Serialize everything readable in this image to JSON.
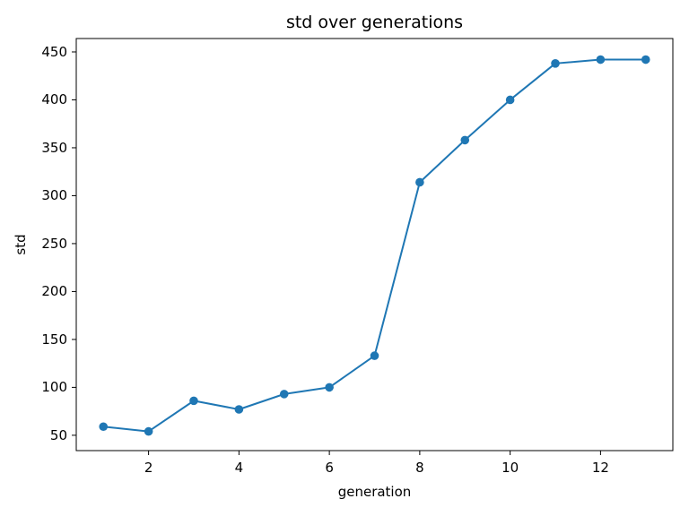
{
  "chart_data": {
    "type": "line",
    "title": "std over generations",
    "xlabel": "generation",
    "ylabel": "std",
    "x": [
      1,
      2,
      3,
      4,
      5,
      6,
      7,
      8,
      9,
      10,
      11,
      12,
      13
    ],
    "series": [
      {
        "name": "std",
        "values": [
          59,
          54,
          86,
          77,
          93,
          100,
          133,
          314,
          358,
          400,
          438,
          442,
          442
        ]
      }
    ],
    "x_ticks": [
      2,
      4,
      6,
      8,
      10,
      12
    ],
    "y_ticks": [
      50,
      100,
      150,
      200,
      250,
      300,
      350,
      400,
      450
    ],
    "xlim": [
      0.4,
      13.6
    ],
    "ylim": [
      34,
      464
    ],
    "grid": false,
    "legend": false,
    "marker": "o",
    "line_color": "#1f77b4",
    "axis_color": "#000000",
    "background_color": "#ffffff"
  }
}
